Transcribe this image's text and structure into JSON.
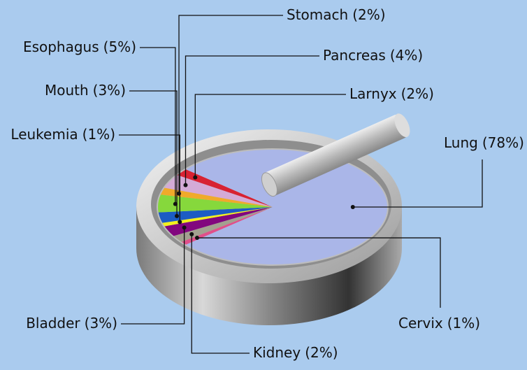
{
  "chart_data": {
    "type": "pie",
    "categories": [
      "Cervix",
      "Kidney",
      "Bladder",
      "Leukemia",
      "Mouth",
      "Esophagus",
      "Stomach",
      "Pancreas",
      "Larnyx",
      "Lung"
    ],
    "values": [
      1,
      2,
      3,
      1,
      3,
      5,
      2,
      4,
      2,
      78
    ],
    "value_labels": [
      "(1%)",
      "(2%)",
      "(3%)",
      "(1%)",
      "(3%)",
      "(5%)",
      "(2%)",
      "(4%)",
      "(2%)",
      "(78%)"
    ],
    "colors": [
      "#e0508a",
      "#a3a090",
      "#82067e",
      "#f2ef1e",
      "#1c5cc4",
      "#86d83c",
      "#f0aa2a",
      "#d4aad6",
      "#d82232",
      "#aab6e8"
    ]
  }
}
